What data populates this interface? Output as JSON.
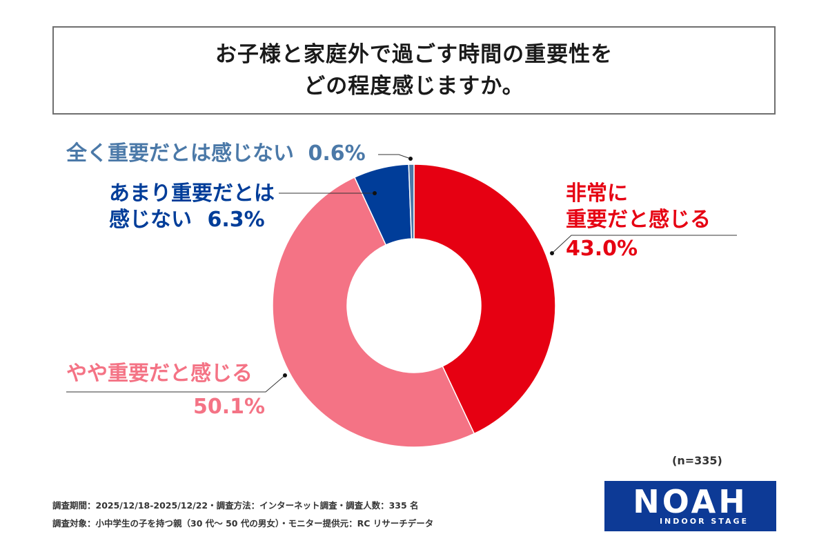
{
  "title": {
    "line1": "お子様と家庭外で過ごす時間の重要性を",
    "line2": "どの程度感じますか。"
  },
  "chart_data": {
    "type": "pie",
    "donut": true,
    "categories": [
      "非常に重要だと感じる",
      "やや重要だと感じる",
      "あまり重要だとは感じない",
      "全く重要だとは感じない"
    ],
    "values": [
      43.0,
      50.1,
      6.3,
      0.6
    ],
    "unit": "%",
    "colors": [
      "#e60012",
      "#f47385",
      "#003d99",
      "#4b79a8"
    ]
  },
  "labels": {
    "very": {
      "line1": "非常に",
      "line2": "重要だと感じる",
      "pct": "43.0%"
    },
    "somewhat": {
      "line1": "やや重要だと感じる",
      "pct": "50.1%"
    },
    "not_much": {
      "line1": "あまり重要だとは",
      "line2": "感じない",
      "pct": "6.3%"
    },
    "not_at_all": {
      "line1": "全く重要だとは感じない",
      "pct": "0.6%"
    }
  },
  "sample": "(n=335)",
  "footnotes": {
    "line1": "調査期間：2025/12/18-2025/12/22・調査方法：インターネット調査・調査人数：335 名",
    "line2": "調査対象：小中学生の子を持つ親（30 代〜 50 代の男女）・モニター提供元：RC リサーチデータ"
  },
  "logo": {
    "main": "NOAH",
    "sub": "INDOOR STAGE",
    "color": "#0d3a96"
  }
}
